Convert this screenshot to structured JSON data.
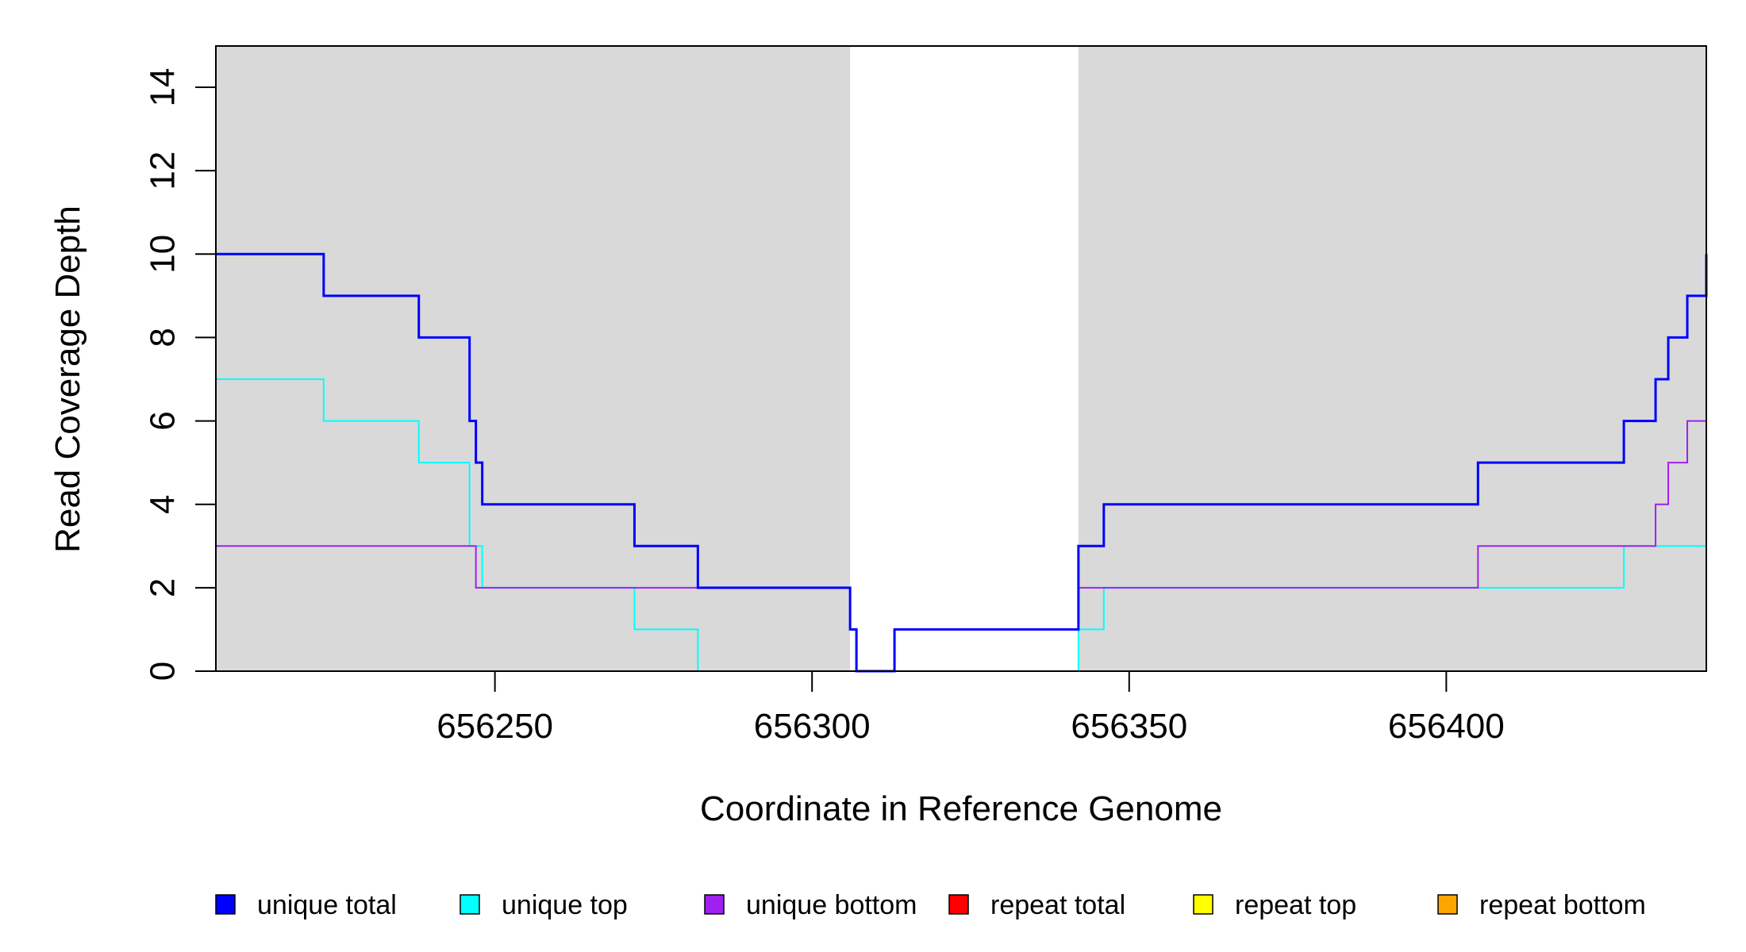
{
  "chart_data": {
    "type": "line",
    "step": true,
    "xlabel": "Coordinate in Reference Genome",
    "ylabel": "Read Coverage Depth",
    "xlim": [
      656206,
      656441
    ],
    "ylim": [
      0,
      15
    ],
    "x_ticks": [
      656250,
      656300,
      656350,
      656400
    ],
    "x_tick_labels": [
      "656250",
      "656300",
      "656350",
      "656400"
    ],
    "y_ticks": [
      0,
      2,
      4,
      6,
      8,
      10,
      12,
      14
    ],
    "y_tick_labels": [
      "0",
      "2",
      "4",
      "6",
      "8",
      "10",
      "12",
      "14"
    ],
    "shaded_regions": [
      {
        "start": 656206,
        "end": 656306,
        "color": "#d9d9d9"
      },
      {
        "start": 656342,
        "end": 656441,
        "color": "#d9d9d9"
      }
    ],
    "legend_position": "bottom",
    "series": [
      {
        "name": "unique total",
        "color": "#0000ff",
        "x": [
          656206,
          656223,
          656238,
          656246,
          656247,
          656248,
          656272,
          656282,
          656306,
          656307,
          656313,
          656342,
          656346,
          656405,
          656428,
          656433,
          656435,
          656438,
          656441
        ],
        "y": [
          10,
          9,
          8,
          6,
          5,
          4,
          3,
          2,
          1,
          0,
          1,
          3,
          4,
          5,
          6,
          7,
          8,
          9,
          10
        ]
      },
      {
        "name": "unique top",
        "color": "#00ffff",
        "x": [
          656206,
          656223,
          656238,
          656246,
          656248,
          656272,
          656282,
          656342,
          656346,
          656405,
          656428,
          656441
        ],
        "y": [
          7,
          6,
          5,
          3,
          2,
          1,
          0,
          1,
          2,
          2,
          3,
          4
        ]
      },
      {
        "name": "unique bottom",
        "color": "#a020f0",
        "x": [
          656206,
          656247,
          656306,
          656307,
          656313,
          656342,
          656405,
          656433,
          656435,
          656438,
          656441
        ],
        "y": [
          3,
          2,
          1,
          0,
          1,
          2,
          3,
          4,
          5,
          6,
          6
        ]
      },
      {
        "name": "repeat total",
        "color": "#ff0000",
        "x": [
          656206,
          656441
        ],
        "y": [
          0,
          0
        ]
      },
      {
        "name": "repeat top",
        "color": "#ffff00",
        "x": [
          656206,
          656441
        ],
        "y": [
          0,
          0
        ]
      },
      {
        "name": "repeat bottom",
        "color": "#ffa500",
        "x": [
          656206,
          656441
        ],
        "y": [
          0,
          0
        ]
      }
    ]
  }
}
